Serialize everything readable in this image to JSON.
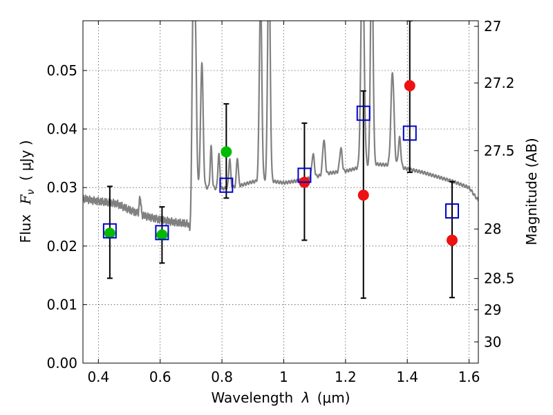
{
  "chart_data": {
    "type": "scatter",
    "title": "",
    "xlabel": "Wavelength",
    "xlabel_symbol": "λ",
    "xlabel_unit": "(μm)",
    "ylabel": "Flux",
    "ylabel_symbol": "F",
    "ylabel_subscript": "ν",
    "ylabel_unit": "( μJy )",
    "y2label": "Magnitude (AB)",
    "xlim": [
      0.35,
      1.63
    ],
    "ylim": [
      0.0,
      0.0585
    ],
    "grid": true,
    "legend": "none",
    "x_ticks": [
      {
        "value": 0.4,
        "label": "0.4"
      },
      {
        "value": 0.6,
        "label": "0.6"
      },
      {
        "value": 0.8,
        "label": "0.8"
      },
      {
        "value": 1.0,
        "label": "1"
      },
      {
        "value": 1.2,
        "label": "1.2"
      },
      {
        "value": 1.4,
        "label": "1.4"
      },
      {
        "value": 1.6,
        "label": "1.6"
      }
    ],
    "y_ticks": [
      {
        "value": 0.0,
        "label": "0.00"
      },
      {
        "value": 0.01,
        "label": "0.01"
      },
      {
        "value": 0.02,
        "label": "0.02"
      },
      {
        "value": 0.03,
        "label": "0.03"
      },
      {
        "value": 0.04,
        "label": "0.04"
      },
      {
        "value": 0.05,
        "label": "0.05"
      }
    ],
    "y2_ticks": [
      {
        "value": 27,
        "label": "27"
      },
      {
        "value": 27.2,
        "label": "27.2"
      },
      {
        "value": 27.5,
        "label": "27.5"
      },
      {
        "value": 28,
        "label": "28"
      },
      {
        "value": 28.5,
        "label": "28.5"
      },
      {
        "value": 29,
        "label": "29"
      },
      {
        "value": 30,
        "label": "30"
      }
    ],
    "colors": {
      "spectrum": "#808080",
      "green_points": "#00bb00",
      "red_points": "#ee1111",
      "model_squares": "#0000cc",
      "error_bars": "#000000"
    },
    "model_spectrum": {
      "continuum": [
        [
          0.35,
          0.0282
        ],
        [
          0.38,
          0.0278
        ],
        [
          0.42,
          0.0275
        ],
        [
          0.46,
          0.0272
        ],
        [
          0.5,
          0.0262
        ],
        [
          0.55,
          0.0252
        ],
        [
          0.6,
          0.0245
        ],
        [
          0.65,
          0.024
        ],
        [
          0.69,
          0.0238
        ],
        [
          0.7,
          0.0215
        ],
        [
          0.705,
          0.0225
        ],
        [
          0.71,
          0.032
        ],
        [
          0.72,
          0.031
        ],
        [
          0.75,
          0.03
        ],
        [
          0.8,
          0.0298
        ],
        [
          0.85,
          0.0302
        ],
        [
          0.9,
          0.031
        ],
        [
          0.95,
          0.0312
        ],
        [
          1.0,
          0.0308
        ],
        [
          1.05,
          0.0312
        ],
        [
          1.1,
          0.0318
        ],
        [
          1.15,
          0.0325
        ],
        [
          1.2,
          0.0328
        ],
        [
          1.25,
          0.0335
        ],
        [
          1.3,
          0.034
        ],
        [
          1.35,
          0.0338
        ],
        [
          1.4,
          0.0332
        ],
        [
          1.45,
          0.0326
        ],
        [
          1.5,
          0.0318
        ],
        [
          1.55,
          0.031
        ],
        [
          1.6,
          0.03
        ],
        [
          1.62,
          0.0285
        ],
        [
          1.63,
          0.0278
        ]
      ],
      "emission_lines": [
        [
          0.535,
          0.0025,
          0.003
        ],
        [
          0.707,
          0.004,
          0.04
        ],
        [
          0.715,
          0.003,
          0.02
        ],
        [
          0.735,
          0.004,
          0.021
        ],
        [
          0.765,
          0.003,
          0.007
        ],
        [
          0.79,
          0.003,
          0.006
        ],
        [
          0.825,
          0.003,
          0.005
        ],
        [
          0.85,
          0.003,
          0.005
        ],
        [
          0.925,
          0.004,
          0.032
        ],
        [
          0.952,
          0.004,
          0.04
        ],
        [
          1.095,
          0.004,
          0.004
        ],
        [
          1.13,
          0.004,
          0.006
        ],
        [
          1.185,
          0.004,
          0.004
        ],
        [
          1.255,
          0.005,
          0.038
        ],
        [
          1.285,
          0.004,
          0.04
        ],
        [
          1.352,
          0.005,
          0.016
        ],
        [
          1.375,
          0.004,
          0.005
        ]
      ]
    },
    "series": [
      {
        "marker": "circle-filled",
        "color": "#00bb00",
        "points": [
          {
            "x": 0.437,
            "y": 0.0222
          },
          {
            "x": 0.606,
            "y": 0.0219
          },
          {
            "x": 0.814,
            "y": 0.0361
          }
        ]
      },
      {
        "marker": "circle-filled",
        "color": "#ee1111",
        "points": [
          {
            "x": 1.067,
            "y": 0.0309
          },
          {
            "x": 1.258,
            "y": 0.0287
          },
          {
            "x": 1.408,
            "y": 0.0474
          },
          {
            "x": 1.545,
            "y": 0.021
          }
        ]
      },
      {
        "marker": "square-open",
        "color": "#0000cc",
        "points": [
          {
            "x": 0.437,
            "y": 0.0226
          },
          {
            "x": 0.606,
            "y": 0.0223
          },
          {
            "x": 0.814,
            "y": 0.0304
          },
          {
            "x": 1.067,
            "y": 0.0321
          },
          {
            "x": 1.258,
            "y": 0.0427
          },
          {
            "x": 1.408,
            "y": 0.0393
          },
          {
            "x": 1.545,
            "y": 0.026
          }
        ]
      }
    ],
    "error_bars": [
      {
        "x": 0.437,
        "low": 0.0145,
        "high": 0.0302
      },
      {
        "x": 0.606,
        "low": 0.0171,
        "high": 0.0267
      },
      {
        "x": 0.814,
        "low": 0.0282,
        "high": 0.0443
      },
      {
        "x": 1.067,
        "low": 0.021,
        "high": 0.041
      },
      {
        "x": 1.258,
        "low": 0.0111,
        "high": 0.0465
      },
      {
        "x": 1.408,
        "low": 0.0326,
        "high": 0.0585
      },
      {
        "x": 1.545,
        "low": 0.0112,
        "high": 0.031
      }
    ]
  }
}
